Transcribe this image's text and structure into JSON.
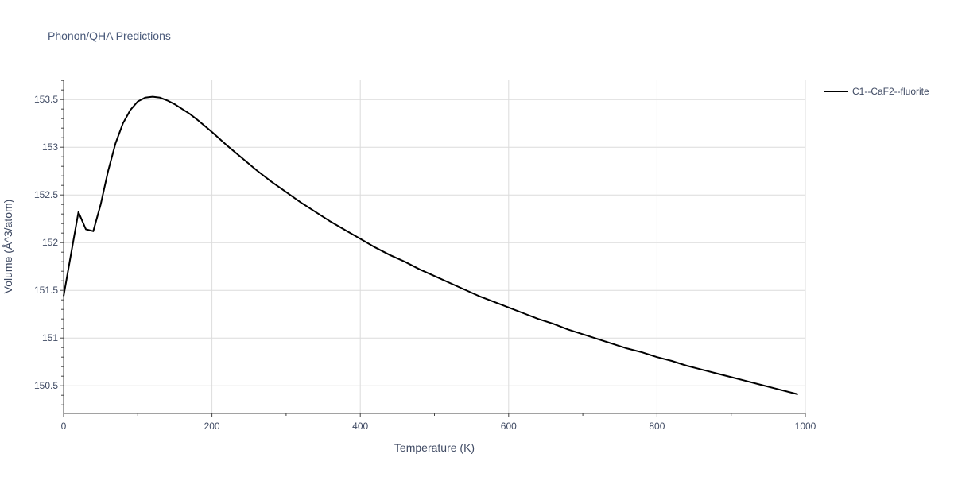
{
  "chart_data": {
    "type": "line",
    "title": "Phonon/QHA Predictions",
    "xlabel": "Temperature (K)",
    "ylabel": "Volume (Å^3/atom)",
    "xlim": [
      0,
      1000
    ],
    "ylim": [
      150.21,
      153.71
    ],
    "x_ticks": [
      0,
      200,
      400,
      600,
      800,
      1000
    ],
    "x_tick_labels": [
      "0",
      "200",
      "400",
      "600",
      "800",
      "1000"
    ],
    "y_ticks": [
      150.5,
      151,
      151.5,
      152,
      152.5,
      153,
      153.5
    ],
    "y_tick_labels": [
      "150.5",
      "151",
      "151.5",
      "152",
      "152.5",
      "153",
      "153.5"
    ],
    "grid": true,
    "legend_position": "top-right",
    "series": [
      {
        "name": "C1--CaF2--fluorite",
        "color": "#000000",
        "x": [
          0,
          10,
          20,
          30,
          40,
          50,
          60,
          70,
          80,
          90,
          100,
          110,
          120,
          130,
          140,
          150,
          160,
          170,
          180,
          200,
          220,
          240,
          260,
          280,
          300,
          320,
          340,
          360,
          380,
          400,
          420,
          440,
          460,
          480,
          500,
          520,
          540,
          560,
          580,
          600,
          620,
          640,
          660,
          680,
          700,
          720,
          740,
          760,
          780,
          800,
          820,
          840,
          860,
          880,
          900,
          920,
          940,
          960,
          990
        ],
        "y": [
          151.44,
          151.88,
          152.32,
          152.14,
          152.12,
          152.4,
          152.75,
          153.04,
          153.25,
          153.39,
          153.48,
          153.52,
          153.53,
          153.52,
          153.49,
          153.45,
          153.4,
          153.35,
          153.29,
          153.16,
          153.02,
          152.89,
          152.76,
          152.64,
          152.53,
          152.42,
          152.32,
          152.22,
          152.13,
          152.04,
          151.95,
          151.87,
          151.8,
          151.72,
          151.65,
          151.58,
          151.51,
          151.44,
          151.38,
          151.32,
          151.26,
          151.2,
          151.15,
          151.09,
          151.04,
          150.99,
          150.94,
          150.89,
          150.85,
          150.8,
          150.76,
          150.71,
          150.67,
          150.63,
          150.59,
          150.55,
          150.51,
          150.47,
          150.41
        ]
      }
    ]
  }
}
